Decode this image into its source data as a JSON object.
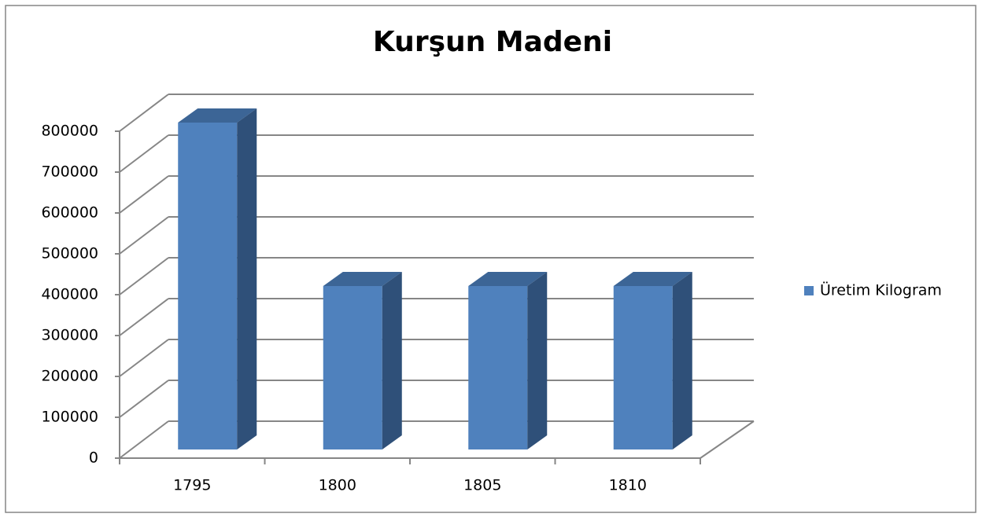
{
  "chart_data": {
    "type": "bar3d",
    "title": "Kurşun Madeni",
    "categories": [
      "1795",
      "1800",
      "1805",
      "1810"
    ],
    "series": [
      {
        "name": "Üretim Kilogram",
        "color": "#4f81bd",
        "values": [
          800000,
          400000,
          400000,
          400000
        ]
      }
    ],
    "ylim": [
      0,
      800000
    ],
    "yticks": [
      0,
      100000,
      200000,
      300000,
      400000,
      500000,
      600000,
      700000,
      800000
    ],
    "grid": true,
    "legend": "right"
  }
}
